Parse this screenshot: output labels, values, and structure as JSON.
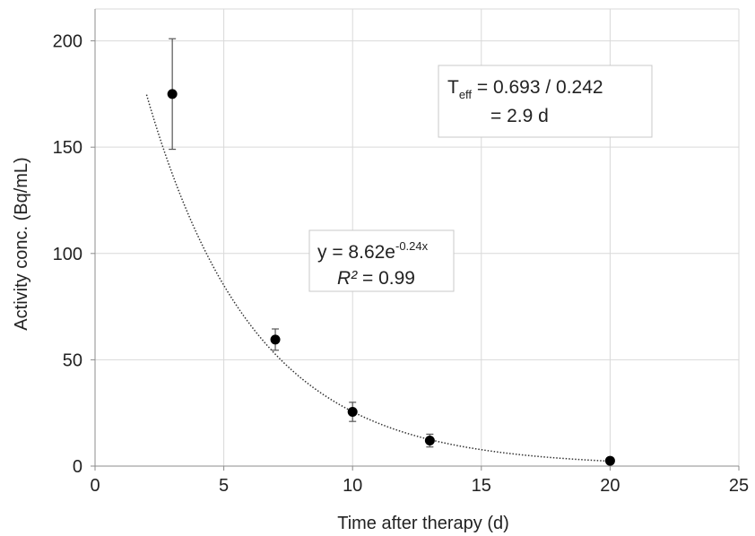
{
  "chart_data": {
    "type": "scatter",
    "xlabel": "Time after therapy (d)",
    "ylabel": "Activity conc. (Bq/mL)",
    "xlim": [
      0,
      25
    ],
    "ylim": [
      0,
      215
    ],
    "xticks": [
      0,
      5,
      10,
      15,
      20,
      25
    ],
    "yticks": [
      0,
      50,
      100,
      150,
      200
    ],
    "grid": true,
    "points": [
      {
        "x": 3,
        "y": 175,
        "err": 26
      },
      {
        "x": 7,
        "y": 59.5,
        "err": 5
      },
      {
        "x": 10,
        "y": 25.5,
        "err": 4.5
      },
      {
        "x": 13,
        "y": 12,
        "err": 3
      },
      {
        "x": 20,
        "y": 2.5,
        "err": 0
      }
    ],
    "fit": {
      "type": "exponential",
      "a": 8.62,
      "k": 0.24,
      "scale": 32.75,
      "x_range": [
        2,
        20
      ],
      "color": "#333333"
    },
    "annotations": {
      "fit_equation": {
        "prefix": "y = 8.62e",
        "exponent": "-0.24x",
        "r2_label": "R²",
        "r2_value": " = 0.99"
      },
      "effective_half_life": {
        "t": "T",
        "sub": "eff",
        "line1_rest": " = 0.693 / 0.242",
        "line2": "= 2.9 d"
      }
    },
    "marker_color": "#000000",
    "grid_color": "#d9d9d9"
  }
}
